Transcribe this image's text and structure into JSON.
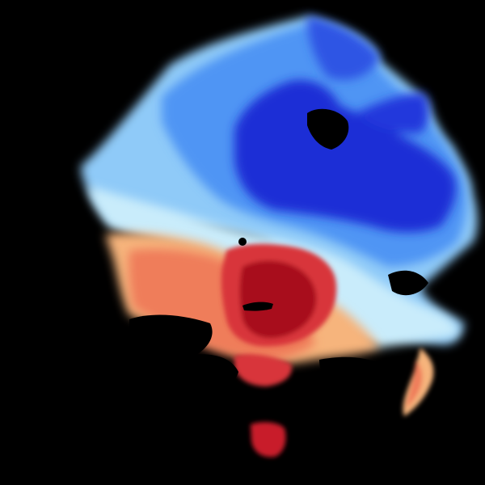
{
  "scene": {
    "background": "#000000",
    "radar_site_color": "#000000",
    "palette": {
      "deep_blue": "#1a2fd6",
      "blue": "#2f6ff0",
      "mid_blue": "#4f95f4",
      "light_blue": "#8fcaf8",
      "pale_blue": "#c9ecfb",
      "pale_yellow": "#fde6b4",
      "light_orange": "#f6b47c",
      "orange": "#ef7d5a",
      "red": "#d8343a",
      "dark_red": "#a8101e"
    }
  }
}
